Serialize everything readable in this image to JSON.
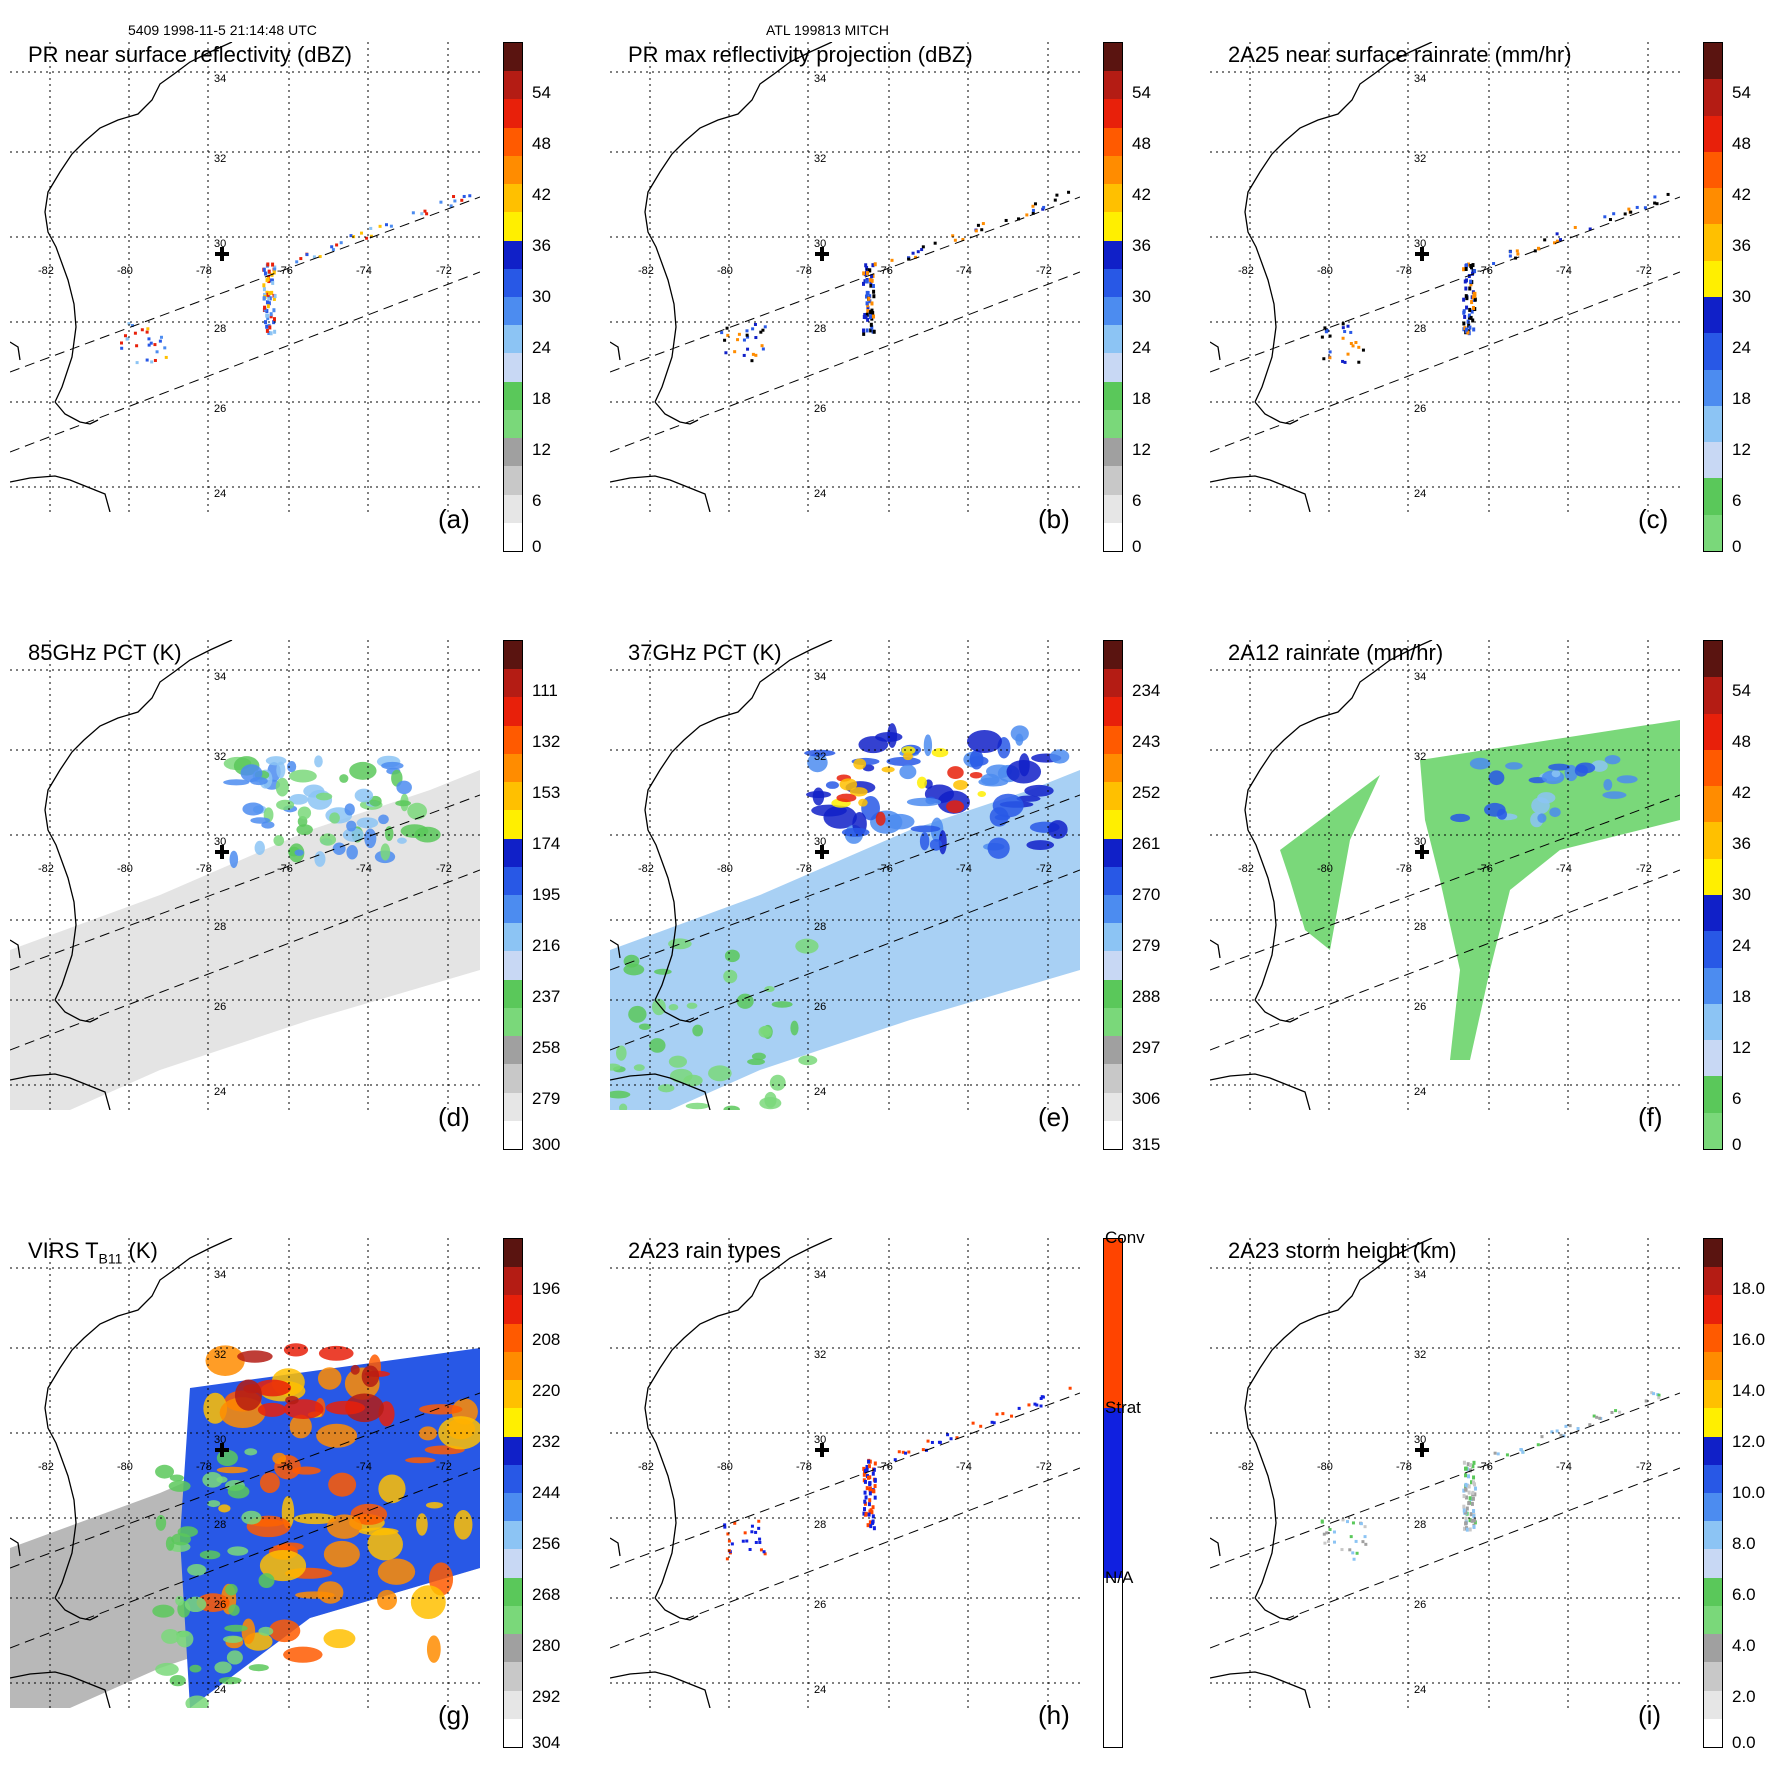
{
  "header": {
    "left": "5409 1998-11-5 21:14:48 UTC",
    "center": "ATL 199813 MITCH"
  },
  "lat_labels": [
    "34",
    "32",
    "30",
    "28",
    "26",
    "24"
  ],
  "lon_labels": [
    "-82",
    "-80",
    "-78",
    "-76",
    "-74",
    "-72"
  ],
  "panels": [
    {
      "id": "a",
      "title": "PR near surface reflectivity (dBZ)",
      "title_sub": "",
      "title_after": "",
      "label": "(a)",
      "ticks": [
        "54",
        "48",
        "42",
        "36",
        "30",
        "24",
        "18",
        "12",
        "6",
        "0"
      ],
      "colors": [
        "#5a1410",
        "#b41c14",
        "#e8200a",
        "#ff5a00",
        "#ff8c00",
        "#ffc000",
        "#ffef00",
        "#1020c8",
        "#2858e6",
        "#4c8cf0",
        "#8cc4f4",
        "#c8d8f4",
        "#5ac85a",
        "#7ad87a",
        "#a0a0a0",
        "#c8c8c8",
        "#e6e6e6",
        "#ffffff"
      ]
    },
    {
      "id": "b",
      "title": "PR max reflectivity projection (dBZ)",
      "title_sub": "",
      "title_after": "",
      "label": "(b)",
      "ticks": [
        "54",
        "48",
        "42",
        "36",
        "30",
        "24",
        "18",
        "12",
        "6",
        "0"
      ],
      "colors": [
        "#5a1410",
        "#b41c14",
        "#e8200a",
        "#ff5a00",
        "#ff8c00",
        "#ffc000",
        "#ffef00",
        "#1020c8",
        "#2858e6",
        "#4c8cf0",
        "#8cc4f4",
        "#c8d8f4",
        "#5ac85a",
        "#7ad87a",
        "#a0a0a0",
        "#c8c8c8",
        "#e6e6e6",
        "#ffffff"
      ]
    },
    {
      "id": "c",
      "title": "2A25 near surface rainrate (mm/hr)",
      "title_sub": "",
      "title_after": "",
      "label": "(c)",
      "ticks": [
        "54",
        "48",
        "42",
        "36",
        "30",
        "24",
        "18",
        "12",
        "6",
        "0"
      ],
      "colors": [
        "#5a1410",
        "#b41c14",
        "#e8200a",
        "#ff5a00",
        "#ff8c00",
        "#ffc000",
        "#ffef00",
        "#1020c8",
        "#2858e6",
        "#4c8cf0",
        "#8cc4f4",
        "#c8d8f4",
        "#5ac85a",
        "#7ad87a"
      ]
    },
    {
      "id": "d",
      "title": "85GHz PCT (K)",
      "title_sub": "",
      "title_after": "",
      "label": "(d)",
      "ticks": [
        "111",
        "132",
        "153",
        "174",
        "195",
        "216",
        "237",
        "258",
        "279",
        "300"
      ],
      "colors": [
        "#5a1410",
        "#b41c14",
        "#e8200a",
        "#ff5a00",
        "#ff8c00",
        "#ffc000",
        "#ffef00",
        "#1020c8",
        "#2858e6",
        "#4c8cf0",
        "#8cc4f4",
        "#c8d8f4",
        "#5ac85a",
        "#7ad87a",
        "#a0a0a0",
        "#c8c8c8",
        "#e6e6e6",
        "#ffffff"
      ]
    },
    {
      "id": "e",
      "title": "37GHz PCT (K)",
      "title_sub": "",
      "title_after": "",
      "label": "(e)",
      "ticks": [
        "234",
        "243",
        "252",
        "261",
        "270",
        "279",
        "288",
        "297",
        "306",
        "315"
      ],
      "colors": [
        "#5a1410",
        "#b41c14",
        "#e8200a",
        "#ff5a00",
        "#ff8c00",
        "#ffc000",
        "#ffef00",
        "#1020c8",
        "#2858e6",
        "#4c8cf0",
        "#8cc4f4",
        "#c8d8f4",
        "#5ac85a",
        "#7ad87a",
        "#a0a0a0",
        "#c8c8c8",
        "#e6e6e6",
        "#ffffff"
      ]
    },
    {
      "id": "f",
      "title": "2A12 rainrate (mm/hr)",
      "title_sub": "",
      "title_after": "",
      "label": "(f)",
      "ticks": [
        "54",
        "48",
        "42",
        "36",
        "30",
        "24",
        "18",
        "12",
        "6",
        "0"
      ],
      "colors": [
        "#5a1410",
        "#b41c14",
        "#e8200a",
        "#ff5a00",
        "#ff8c00",
        "#ffc000",
        "#ffef00",
        "#1020c8",
        "#2858e6",
        "#4c8cf0",
        "#8cc4f4",
        "#c8d8f4",
        "#5ac85a",
        "#7ad87a"
      ]
    },
    {
      "id": "g",
      "title": "VIRS T",
      "title_sub": "B11",
      "title_after": " (K)",
      "label": "(g)",
      "ticks": [
        "196",
        "208",
        "220",
        "232",
        "244",
        "256",
        "268",
        "280",
        "292",
        "304"
      ],
      "colors": [
        "#5a1410",
        "#b41c14",
        "#e8200a",
        "#ff5a00",
        "#ff8c00",
        "#ffc000",
        "#ffef00",
        "#1020c8",
        "#2858e6",
        "#4c8cf0",
        "#8cc4f4",
        "#c8d8f4",
        "#5ac85a",
        "#7ad87a",
        "#a0a0a0",
        "#c8c8c8",
        "#e6e6e6",
        "#ffffff"
      ]
    },
    {
      "id": "h",
      "title": "2A23 rain types",
      "title_sub": "",
      "title_after": "",
      "label": "(h)",
      "ticks": [
        "Conv",
        "Strat",
        "N/A"
      ],
      "colors": [
        "#ff4400",
        "#1020e0",
        "#ffffff"
      ]
    },
    {
      "id": "i",
      "title": "2A23 storm height (km)",
      "title_sub": "",
      "title_after": "",
      "label": "(i)",
      "ticks": [
        "18.0",
        "16.0",
        "14.0",
        "12.0",
        "10.0",
        "8.0",
        "6.0",
        "4.0",
        "2.0",
        "0.0"
      ],
      "colors": [
        "#5a1410",
        "#b41c14",
        "#e8200a",
        "#ff5a00",
        "#ff8c00",
        "#ffc000",
        "#ffef00",
        "#1020c8",
        "#2858e6",
        "#4c8cf0",
        "#8cc4f4",
        "#c8d8f4",
        "#5ac85a",
        "#7ad87a",
        "#a0a0a0",
        "#c8c8c8",
        "#e6e6e6",
        "#ffffff"
      ]
    }
  ]
}
